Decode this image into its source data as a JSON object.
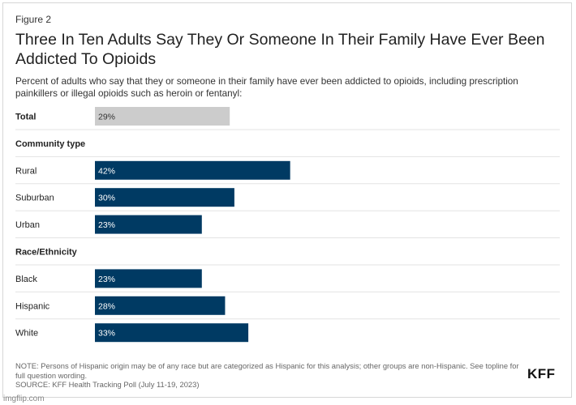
{
  "figure_label": "Figure 2",
  "title": "Three In Ten Adults Say They Or Someone In Their Family Have Ever Been Addicted To Opioids",
  "subtitle": "Percent of adults who say that they or someone in their family have ever been addicted to opioids, including prescription painkillers or illegal opioids such as heroin or fentanyl:",
  "note": "NOTE: Persons of Hispanic origin may be of any race but are categorized as Hispanic for this analysis; other groups are non-Hispanic. See topline for full question wording.",
  "source": "SOURCE: KFF Health Tracking Poll (July 11-19, 2023)",
  "logo_text": "KFF",
  "watermark": "imgflip.com",
  "colors": {
    "total_bar": "#cccccc",
    "group_bar": "#003a63",
    "divider": "#e3e3e3"
  },
  "chart_data": {
    "type": "bar",
    "orientation": "horizontal",
    "xlim": [
      0,
      100
    ],
    "rows": [
      {
        "kind": "bar",
        "label": "Total",
        "value": 29,
        "bold": true,
        "style": "total"
      },
      {
        "kind": "header",
        "label": "Community type"
      },
      {
        "kind": "bar",
        "label": "Rural",
        "value": 42,
        "style": "group"
      },
      {
        "kind": "bar",
        "label": "Suburban",
        "value": 30,
        "style": "group"
      },
      {
        "kind": "bar",
        "label": "Urban",
        "value": 23,
        "style": "group"
      },
      {
        "kind": "header",
        "label": "Race/Ethnicity"
      },
      {
        "kind": "bar",
        "label": "Black",
        "value": 23,
        "style": "group"
      },
      {
        "kind": "bar",
        "label": "Hispanic",
        "value": 28,
        "style": "group"
      },
      {
        "kind": "bar",
        "label": "White",
        "value": 33,
        "style": "group"
      }
    ]
  }
}
